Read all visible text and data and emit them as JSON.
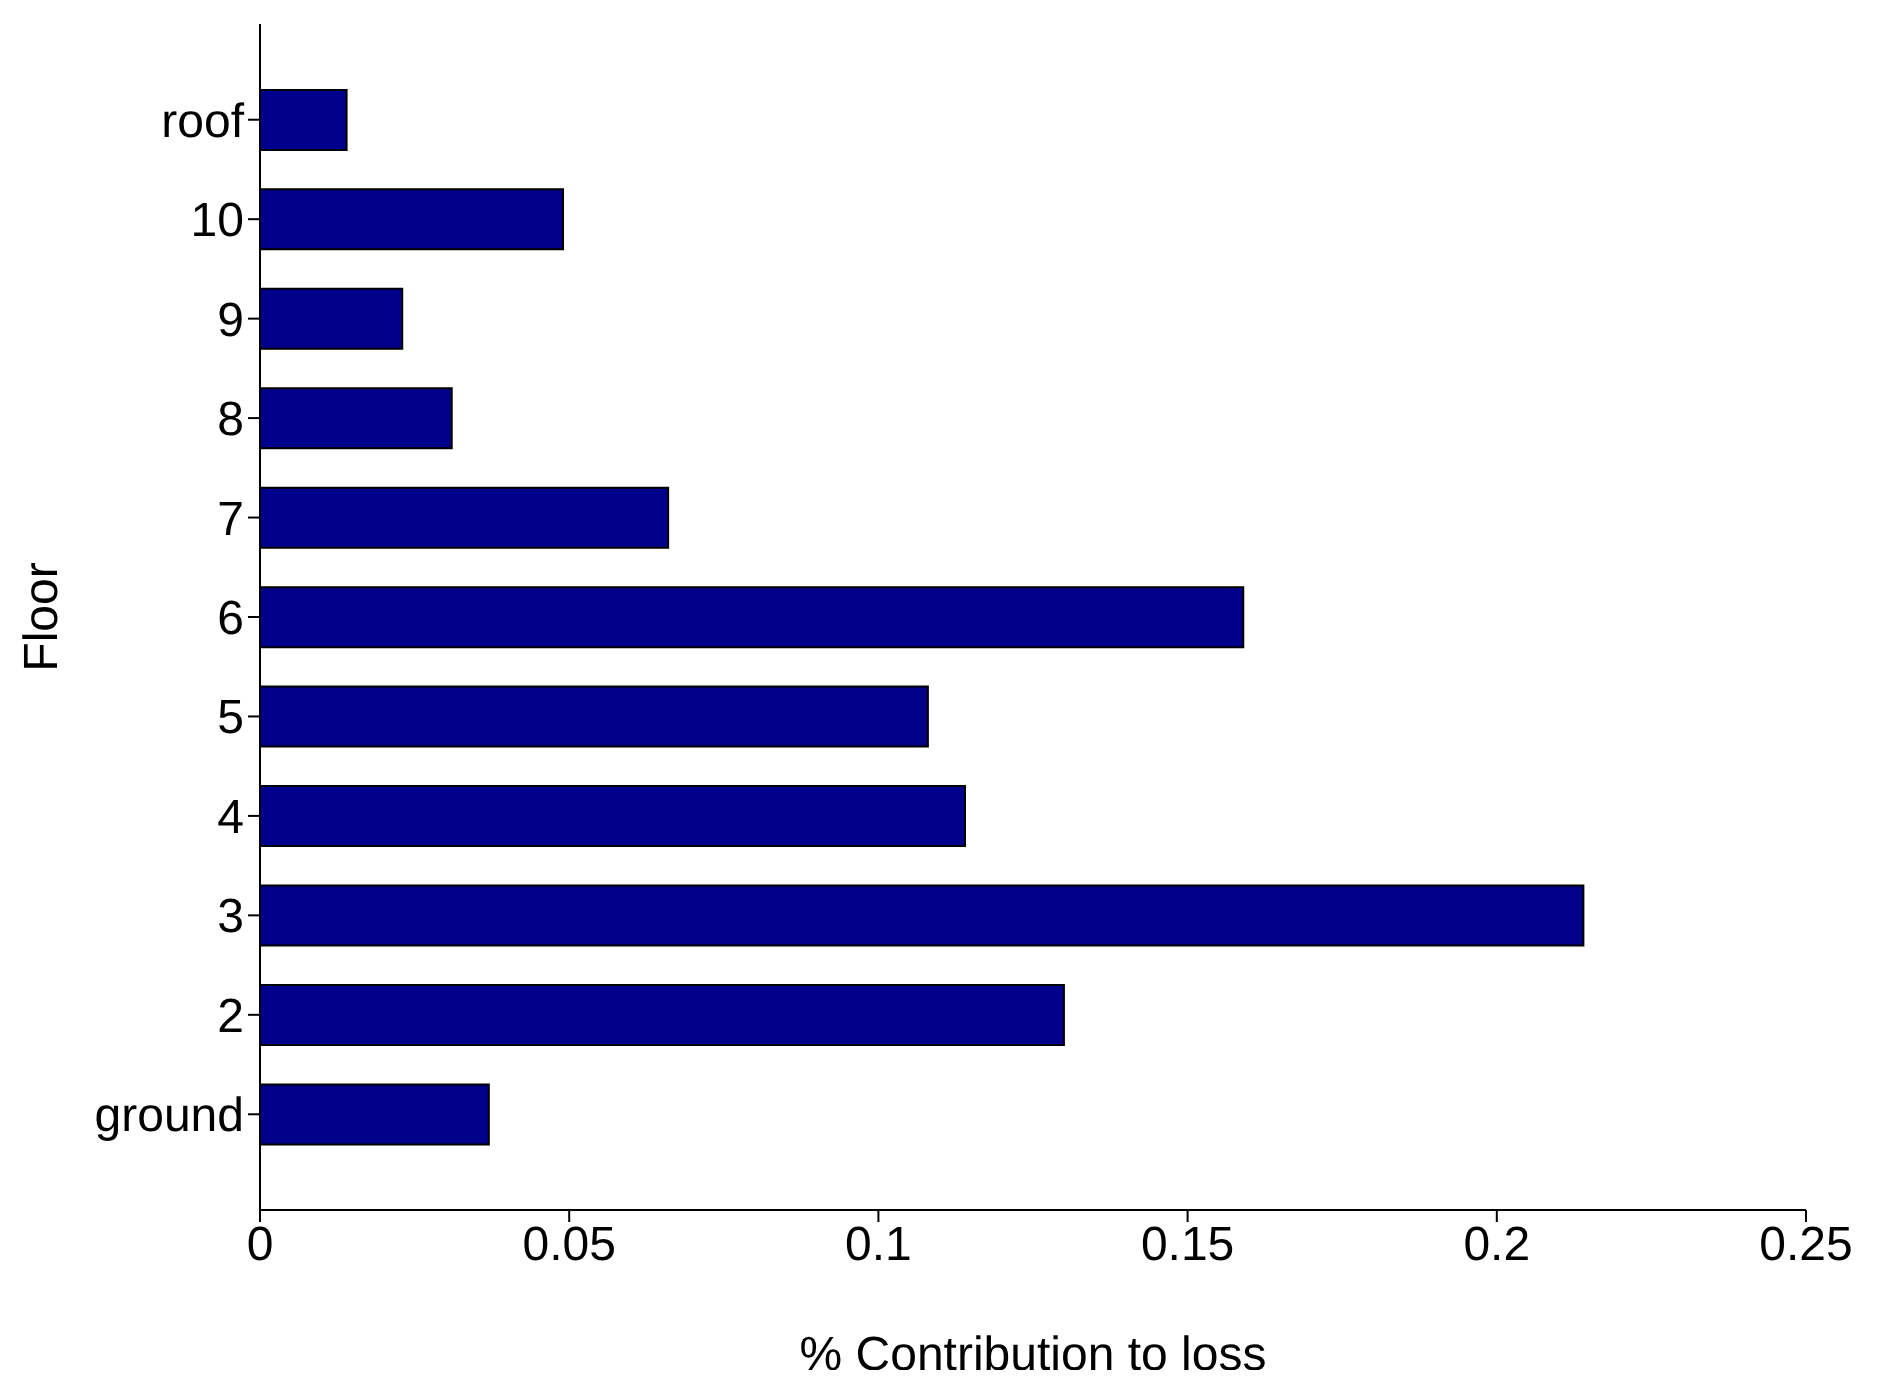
{
  "chart_data": {
    "type": "bar",
    "orientation": "horizontal",
    "xlabel": "% Contribution to loss",
    "ylabel": "Floor",
    "categories": [
      "roof",
      "10",
      "9",
      "8",
      "7",
      "6",
      "5",
      "4",
      "3",
      "2",
      "ground"
    ],
    "values": [
      0.014,
      0.049,
      0.023,
      0.031,
      0.066,
      0.159,
      0.108,
      0.114,
      0.214,
      0.13,
      0.037
    ],
    "color": "#00008b",
    "xlim": [
      0,
      0.25
    ],
    "xticks": [
      0,
      0.05,
      0.1,
      0.15,
      0.2,
      0.25
    ],
    "grid": false,
    "legend": false
  }
}
